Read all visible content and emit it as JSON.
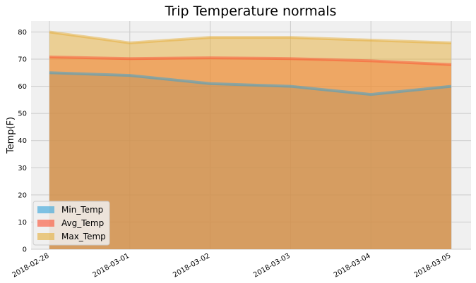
{
  "chart_data": {
    "type": "area",
    "title": "Trip Temperature normals",
    "xlabel": "",
    "ylabel": "Temp(F)",
    "x": [
      "2018-02-28",
      "2018-03-01",
      "2018-03-02",
      "2018-03-03",
      "2018-03-04",
      "2018-03-05"
    ],
    "ylim": [
      0,
      84
    ],
    "yticks": [
      0,
      10,
      20,
      30,
      40,
      50,
      60,
      70,
      80
    ],
    "grid": true,
    "stacked": false,
    "legend_position": "lower-left",
    "series": [
      {
        "name": "Min_Temp",
        "values": [
          65,
          64,
          61,
          60,
          57,
          60
        ],
        "color": "#30a2da"
      },
      {
        "name": "Avg_Temp",
        "values": [
          70.8,
          70.2,
          70.5,
          70.2,
          69.4,
          68
        ],
        "color": "#fc4f30"
      },
      {
        "name": "Max_Temp",
        "values": [
          80,
          76,
          78,
          78,
          77,
          76
        ],
        "color": "#e5ae38"
      }
    ]
  }
}
